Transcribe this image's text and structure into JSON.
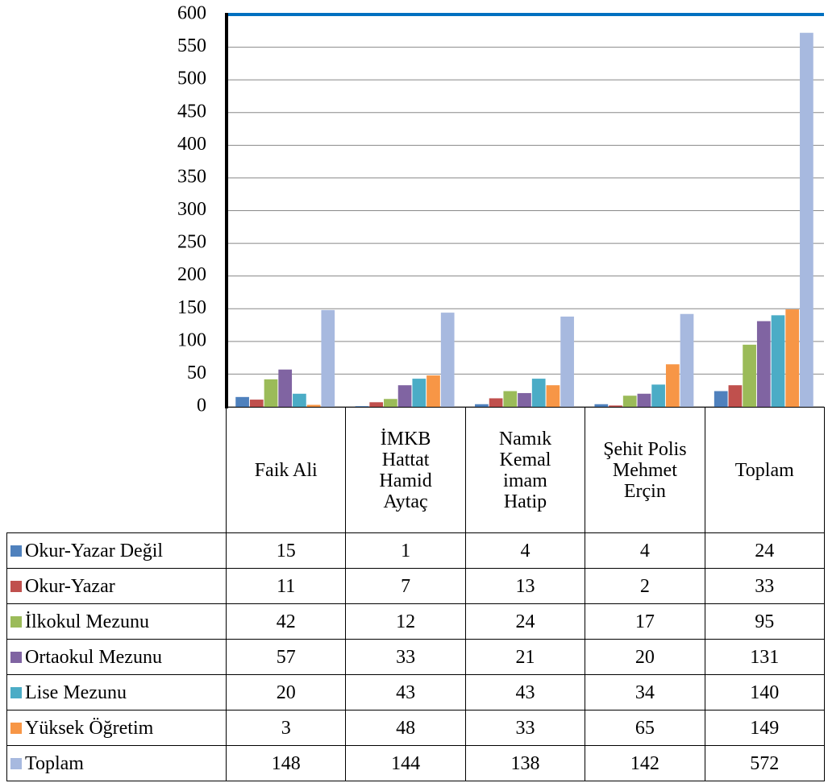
{
  "chart_data": {
    "type": "bar",
    "categories": [
      "Faik Ali",
      "İMKB Hattat Hamid Aytaç",
      "Namık Kemal imam Hatip",
      "Şehit Polis Mehmet Erçin",
      "Toplam"
    ],
    "series": [
      {
        "name": "Okur-Yazar Değil",
        "color": "#4f81bd",
        "values": [
          15,
          1,
          4,
          4,
          24
        ]
      },
      {
        "name": "Okur-Yazar",
        "color": "#c0504d",
        "values": [
          11,
          7,
          13,
          2,
          33
        ]
      },
      {
        "name": "İlkokul Mezunu",
        "color": "#9bbb59",
        "values": [
          42,
          12,
          24,
          17,
          95
        ]
      },
      {
        "name": "Ortaokul Mezunu",
        "color": "#8064a2",
        "values": [
          57,
          33,
          21,
          20,
          131
        ]
      },
      {
        "name": "Lise Mezunu",
        "color": "#4bacc6",
        "values": [
          20,
          43,
          43,
          34,
          140
        ]
      },
      {
        "name": "Yüksek Öğretim",
        "color": "#f79646",
        "values": [
          3,
          48,
          33,
          65,
          149
        ]
      },
      {
        "name": "Toplam",
        "color": "#a7b9df",
        "values": [
          148,
          144,
          138,
          142,
          572
        ]
      }
    ],
    "ylim": [
      0,
      600
    ],
    "yticks": [
      0,
      50,
      100,
      150,
      200,
      250,
      300,
      350,
      400,
      450,
      500,
      550,
      600
    ],
    "grid": true
  }
}
